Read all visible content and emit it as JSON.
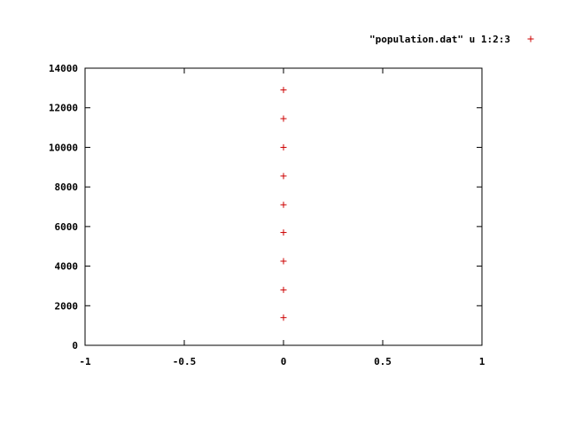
{
  "chart_data": {
    "type": "scatter",
    "title": "",
    "xlabel": "",
    "ylabel": "",
    "xlim": [
      -1,
      1
    ],
    "ylim": [
      0,
      14000
    ],
    "x_ticks": [
      -1,
      -0.5,
      0,
      0.5,
      1
    ],
    "x_tick_labels": [
      "-1",
      "-0.5",
      "0",
      "0.5",
      "1"
    ],
    "y_ticks": [
      0,
      2000,
      4000,
      6000,
      8000,
      10000,
      12000,
      14000
    ],
    "y_tick_labels": [
      "0",
      "2000",
      "4000",
      "6000",
      "8000",
      "10000",
      "12000",
      "14000"
    ],
    "grid": false,
    "legend_position": "top-right",
    "series": [
      {
        "name": "\"population.dat\" u 1:2:3",
        "marker": "plus",
        "color": "#cc0000",
        "x": [
          0,
          0,
          0,
          0,
          0,
          0,
          0,
          0,
          0
        ],
        "y": [
          1400,
          2800,
          4250,
          5700,
          7100,
          8550,
          10000,
          11450,
          12900
        ]
      }
    ]
  }
}
